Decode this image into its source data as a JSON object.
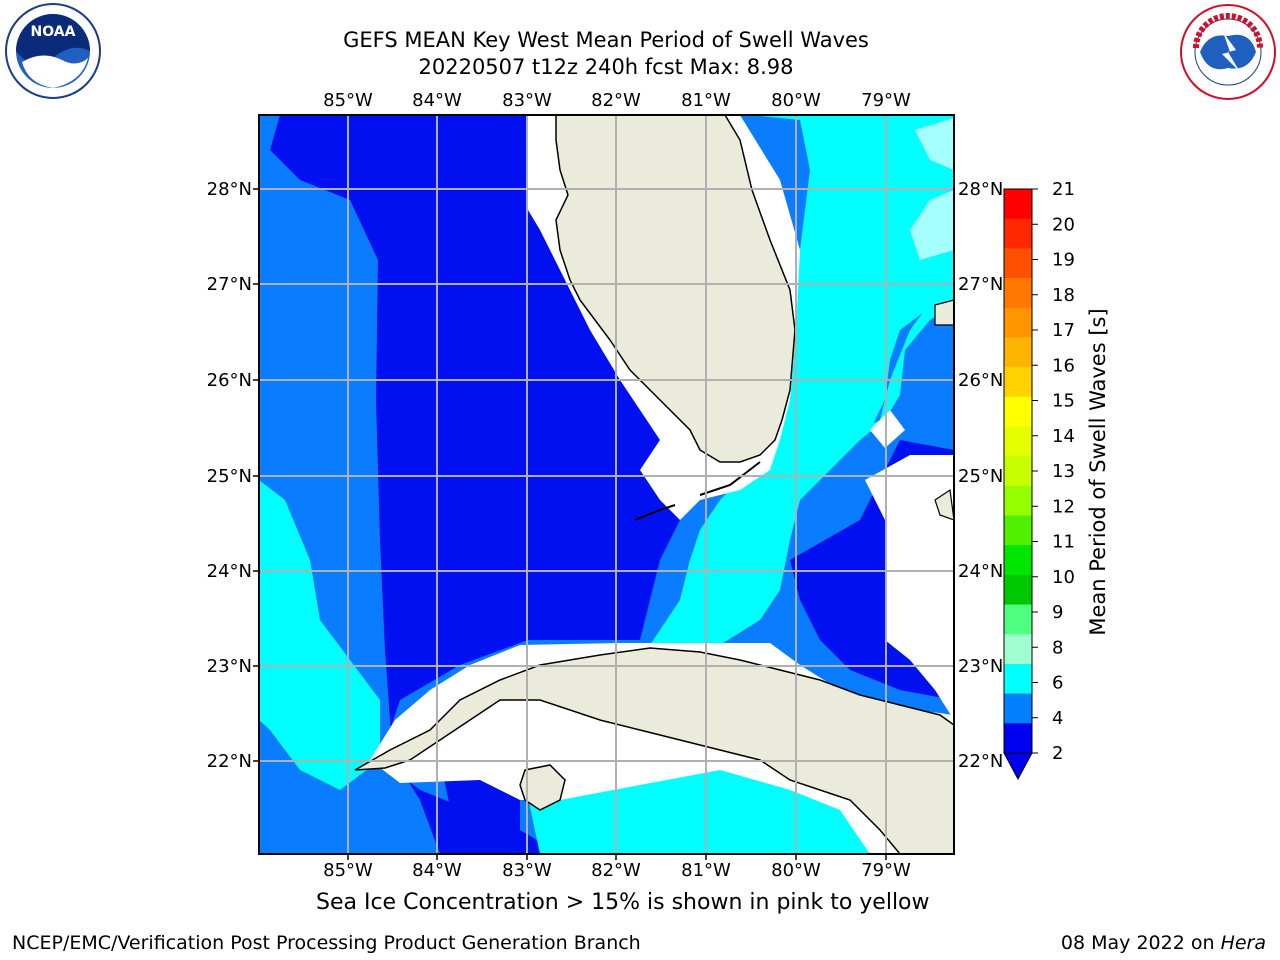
{
  "title": {
    "line1": "GEFS MEAN Key West Mean Period of Swell Waves",
    "line2": "20220507 t12z 240h fcst   Max: 8.98"
  },
  "map": {
    "lon_labels": [
      "85°W",
      "84°W",
      "83°W",
      "82°W",
      "81°W",
      "80°W",
      "79°W"
    ],
    "lat_labels": [
      "28°N",
      "27°N",
      "26°N",
      "25°N",
      "24°N",
      "23°N",
      "22°N"
    ],
    "colors": {
      "ocean_2_4": "#0010f0",
      "ocean_4_6": "#0a7cff",
      "ocean_6_8": "#00ffff",
      "ocean_8_9": "#a6ffff",
      "land": "#ebebdc",
      "gridline": "#b0b0b0"
    }
  },
  "colorbar": {
    "label": "Mean Period of Swell Waves [s]",
    "ticks": [
      "21",
      "20",
      "19",
      "18",
      "17",
      "16",
      "15",
      "14",
      "13",
      "12",
      "11",
      "10",
      "9",
      "8",
      "6",
      "4",
      "2"
    ],
    "colors": [
      "#ff0000",
      "#ff2800",
      "#ff5000",
      "#ff7800",
      "#ff9600",
      "#ffb400",
      "#ffd200",
      "#ffff00",
      "#e6ff00",
      "#c8ff00",
      "#96ff00",
      "#50f000",
      "#00e600",
      "#00c800",
      "#50ff80",
      "#a0ffd0",
      "#00ffff",
      "#0080ff",
      "#0000f0"
    ]
  },
  "logos": {
    "noaa_text": "NOAA",
    "nws_text": "NATIONAL WEATHER SERVICE"
  },
  "ice_note": "Sea Ice Concentration > 15% is shown in pink to yellow",
  "footer": {
    "left": "NCEP/EMC/Verification Post Processing Product Generation Branch",
    "right_date": "08 May 2022 on ",
    "right_machine": "Hera"
  }
}
